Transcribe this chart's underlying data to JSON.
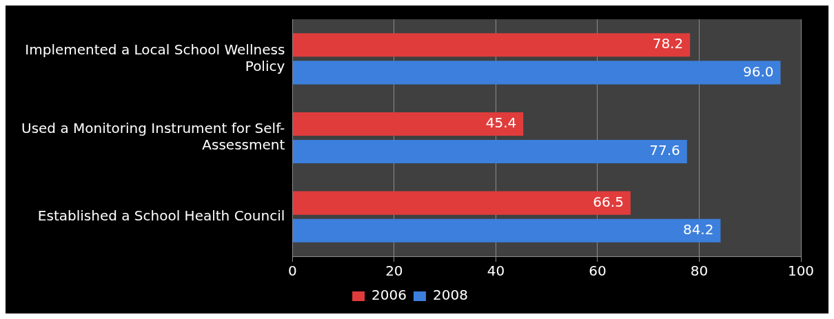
{
  "chart_data": {
    "type": "bar",
    "orientation": "horizontal",
    "categories": [
      "Implemented a Local School Wellness Policy",
      "Used a Monitoring Instrument for Self-Assessment",
      "Established a School Health Council"
    ],
    "series": [
      {
        "name": "2006",
        "color": "#e03c3c",
        "values": [
          78.2,
          45.4,
          66.5
        ],
        "value_labels": [
          "78.2",
          "45.4",
          "66.5"
        ]
      },
      {
        "name": "2008",
        "color": "#3c7fdc",
        "values": [
          96.0,
          77.6,
          84.2
        ],
        "value_labels": [
          "96.0",
          "77.6",
          "84.2"
        ]
      }
    ],
    "xlim": [
      0,
      100
    ],
    "xticks": [
      0,
      20,
      40,
      60,
      80,
      100
    ],
    "grid": "x",
    "legend": "bottom"
  }
}
